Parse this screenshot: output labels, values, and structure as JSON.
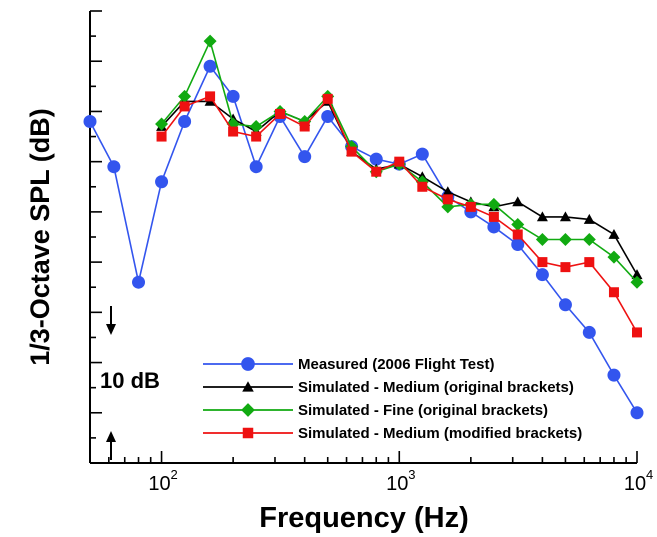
{
  "chart_data": {
    "type": "line",
    "xlabel": "Frequency (Hz)",
    "ylabel": "1/3-Octave SPL (dB)",
    "x_scale": "log",
    "xlim": [
      50,
      10000
    ],
    "ylim": [
      0,
      90
    ],
    "y_tick_labels_shown": false,
    "x_ticks": [
      {
        "value": 100,
        "base": "10",
        "exp": "2"
      },
      {
        "value": 1000,
        "base": "10",
        "exp": "3"
      },
      {
        "value": 10000,
        "base": "10",
        "exp": "4"
      }
    ],
    "scale_annotation": "10 dB",
    "grid": false,
    "legend_position": "bottom-right",
    "series": [
      {
        "name": "Measured (2006 Flight Test)",
        "color": "#3355ee",
        "marker": "circle",
        "x": [
          50,
          63,
          80,
          100,
          125,
          160,
          200,
          250,
          315,
          400,
          500,
          630,
          800,
          1000,
          1250,
          1600,
          2000,
          2500,
          3150,
          4000,
          5000,
          6300,
          8000,
          10000
        ],
        "y": [
          68,
          59,
          36,
          56,
          68,
          79,
          73,
          59,
          69,
          61,
          69,
          63,
          60.5,
          59.5,
          61.5,
          53,
          50,
          47,
          43.5,
          37.5,
          31.5,
          26,
          17.5,
          10
        ]
      },
      {
        "name": "Simulated - Medium (original brackets)",
        "color": "#000000",
        "marker": "triangle",
        "x": [
          100,
          125,
          160,
          200,
          250,
          315,
          400,
          500,
          630,
          800,
          1000,
          1250,
          1600,
          2000,
          2500,
          3150,
          4000,
          5000,
          6300,
          8000,
          10000
        ],
        "y": [
          67,
          72,
          72,
          68.5,
          66,
          70,
          68,
          72,
          62,
          58.5,
          59.5,
          57,
          54,
          52,
          51,
          52,
          49,
          49,
          48.5,
          45.5,
          37.5
        ]
      },
      {
        "name": "Simulated - Fine (original brackets)",
        "color": "#11aa11",
        "marker": "diamond",
        "x": [
          100,
          125,
          160,
          200,
          250,
          315,
          400,
          500,
          630,
          800,
          1000,
          1250,
          1600,
          2000,
          2500,
          3150,
          4000,
          5000,
          6300,
          8000,
          10000
        ],
        "y": [
          67.5,
          73,
          84,
          67.5,
          67,
          70,
          68,
          73,
          63,
          58,
          59.5,
          56,
          51,
          51.5,
          51.5,
          47.5,
          44.5,
          44.5,
          44.5,
          41,
          36
        ]
      },
      {
        "name": "Simulated - Medium (modified brackets)",
        "color": "#ee1111",
        "marker": "square",
        "x": [
          100,
          125,
          160,
          200,
          250,
          315,
          400,
          500,
          630,
          800,
          1000,
          1250,
          1600,
          2000,
          2500,
          3150,
          4000,
          5000,
          6300,
          8000,
          10000
        ],
        "y": [
          65,
          71,
          73,
          66,
          65,
          69.5,
          67,
          72.5,
          62,
          58,
          60,
          55,
          52.5,
          51,
          49,
          45.5,
          40,
          39,
          40,
          34,
          26
        ]
      }
    ]
  }
}
